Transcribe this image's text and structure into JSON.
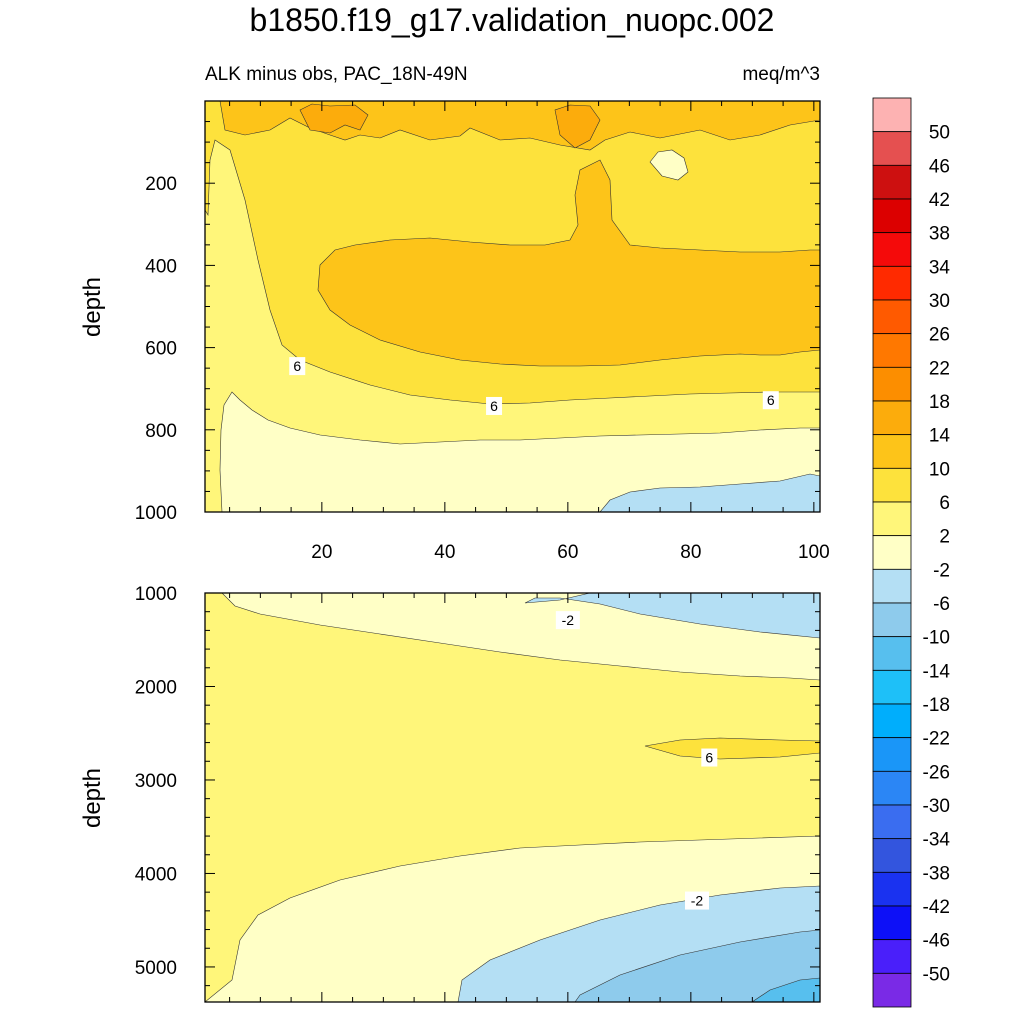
{
  "title": "b1850.f19_g17.validation_nuopc.002",
  "subtitle_left": "ALK minus obs, PAC_18N-49N",
  "subtitle_right": "meq/m^3",
  "colors": {
    "bg_main": "#fff67a",
    "c_m2_2": "#ffffc6",
    "c_2_6": "#fff67a",
    "c_6_10": "#fde23c",
    "c_10_14": "#fdc419",
    "c_14_18": "#fcac0c",
    "c_m6_m2": "#b4dff4",
    "c_m10_m6": "#8ecbec",
    "c_m14_m10": "#57bfee"
  },
  "chart_data": [
    {
      "type": "contour",
      "name": "upper-panel",
      "xlim": [
        1,
        101
      ],
      "ylim": [
        1000,
        0
      ],
      "ylabel": "depth",
      "x_tick_labels": [
        "20",
        "40",
        "60",
        "80",
        "100"
      ],
      "y_tick_labels": [
        "200",
        "400",
        "600",
        "800",
        "1000"
      ],
      "contour_labels": [
        {
          "text": "6",
          "x": 16,
          "y": 645
        },
        {
          "text": "6",
          "x": 48,
          "y": 742
        },
        {
          "text": "6",
          "x": 93,
          "y": 728
        }
      ]
    },
    {
      "type": "contour",
      "name": "lower-panel",
      "xlim": [
        1,
        101
      ],
      "ylim": [
        5375,
        1000
      ],
      "ylabel": "depth",
      "y_tick_labels": [
        "1000",
        "2000",
        "3000",
        "4000",
        "5000"
      ],
      "contour_labels": [
        {
          "text": "-2",
          "x": 60,
          "y": 1290
        },
        {
          "text": "6",
          "x": 83,
          "y": 2760
        },
        {
          "text": "-2",
          "x": 81,
          "y": 4290
        }
      ]
    }
  ],
  "colorbar": {
    "labels": [
      "50",
      "46",
      "42",
      "38",
      "34",
      "30",
      "26",
      "22",
      "18",
      "14",
      "10",
      "6",
      "2",
      "-2",
      "-6",
      "-10",
      "-14",
      "-18",
      "-22",
      "-26",
      "-30",
      "-34",
      "-38",
      "-42",
      "-46",
      "-50"
    ],
    "colors": [
      "#fdb2b2",
      "#e55050",
      "#cd1010",
      "#dc0000",
      "#f50a0a",
      "#ff2a00",
      "#ff5a00",
      "#ff7800",
      "#fc8e00",
      "#fcac0c",
      "#fdc419",
      "#fde23c",
      "#fff67a",
      "#ffffc6",
      "#b4dff4",
      "#8ecbec",
      "#57bfee",
      "#1ec0f8",
      "#00aefc",
      "#1a96f8",
      "#2b86f5",
      "#3a6df0",
      "#3355de",
      "#1a32f0",
      "#0d10f7",
      "#4a1ffa",
      "#7a2ae6"
    ]
  }
}
